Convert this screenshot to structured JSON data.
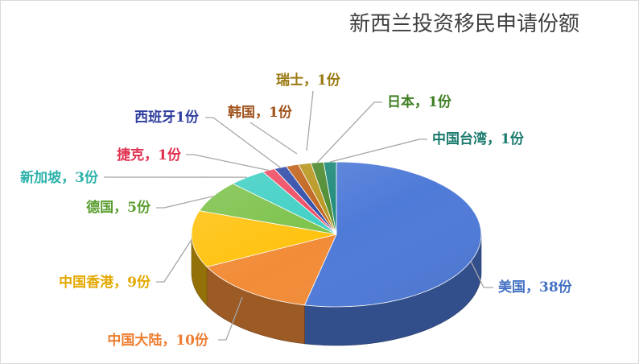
{
  "chart_data": {
    "type": "pie",
    "title": "新西兰投资移民申请份额",
    "slices": [
      {
        "category": "美国",
        "value": 38,
        "label": "美国，38份",
        "color": "#4f7bd8",
        "label_color": "#4472c4"
      },
      {
        "category": "中国大陆",
        "value": 10,
        "label": "中国大陆，10份",
        "color": "#f28c38",
        "label_color": "#ed7d31"
      },
      {
        "category": "中国香港",
        "value": 9,
        "label": "中国香港，9份",
        "color": "#ffc20e",
        "label_color": "#e3a800"
      },
      {
        "category": "德国",
        "value": 5,
        "label": "德国，5份",
        "color": "#7cc24a",
        "label_color": "#5a9e2f"
      },
      {
        "category": "新加坡",
        "value": 3,
        "label": "新加坡，3份",
        "color": "#3fcfc4",
        "label_color": "#2db2aa"
      },
      {
        "category": "捷克",
        "value": 1,
        "label": "捷克，1份",
        "color": "#ee4a62",
        "label_color": "#e0304e"
      },
      {
        "category": "西班牙",
        "value": 1,
        "label": "西班牙1份",
        "color": "#2f4aa8",
        "label_color": "#2f3e9e"
      },
      {
        "category": "韩国",
        "value": 1,
        "label": "韩国，1份",
        "color": "#c0621a",
        "label_color": "#a0521a"
      },
      {
        "category": "瑞士",
        "value": 1,
        "label": "瑞士，1份",
        "color": "#b8961e",
        "label_color": "#9a7a12"
      },
      {
        "category": "日本",
        "value": 1,
        "label": "日本，1份",
        "color": "#4d8a2e",
        "label_color": "#3f7f22"
      },
      {
        "category": "中国台湾",
        "value": 1,
        "label": "中国台湾，1份",
        "color": "#1e8a7a",
        "label_color": "#1a7a6e"
      }
    ],
    "legend": "none",
    "style": "3d-pie"
  }
}
